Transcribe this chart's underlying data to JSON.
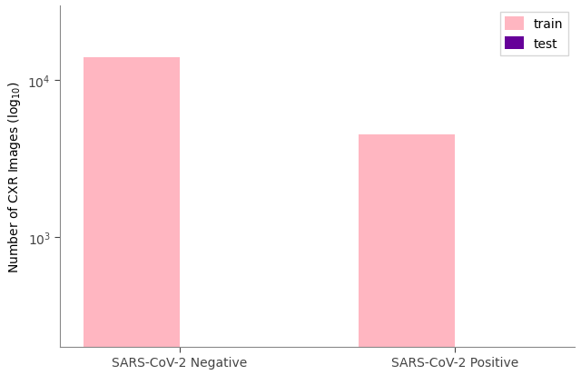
{
  "categories": [
    "SARS-CoV-2 Negative",
    "SARS-CoV-2 Positive"
  ],
  "train_values": [
    14000,
    4500
  ],
  "test_values": [
    200,
    200
  ],
  "train_color": "#FFB6C1",
  "test_color": "#660099",
  "ylabel": "Number of CXR Images (log$_{10}$)",
  "ylim_min": 200,
  "ylim_max": 30000,
  "bar_width": 0.35,
  "legend_labels": [
    "train",
    "test"
  ],
  "background_color": "#ffffff"
}
